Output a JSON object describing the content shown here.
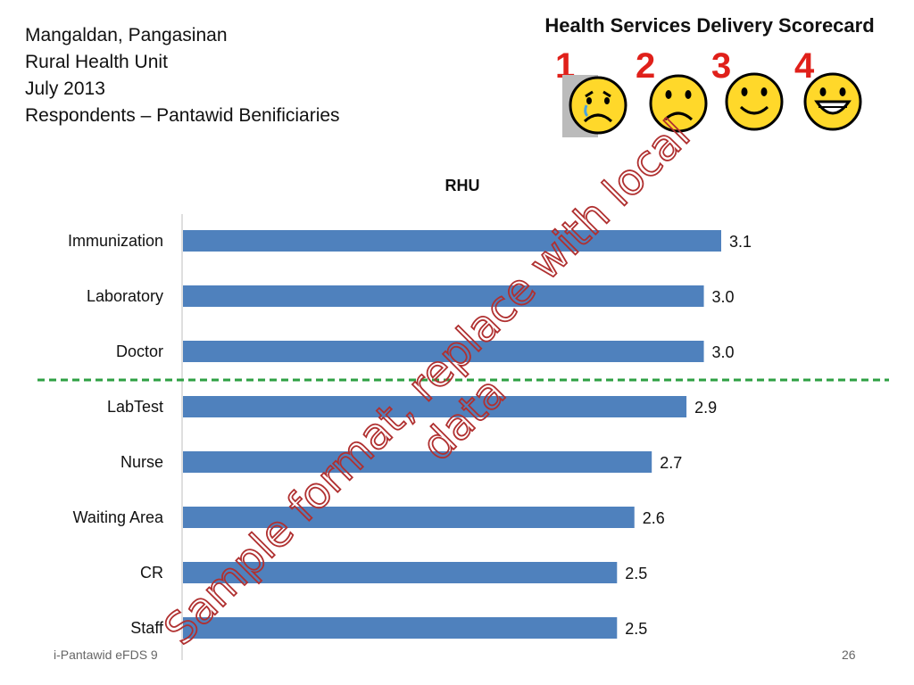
{
  "header": {
    "line1": "Mangaldan, Pangasinan",
    "line2": "Rural Health Unit",
    "line3": "July 2013",
    "line4": "Respondents – Pantawid Benificiaries"
  },
  "scorecard": {
    "title": "Health Services Delivery Scorecard",
    "levels": [
      {
        "number": "1",
        "icon": "crying-face-icon"
      },
      {
        "number": "2",
        "icon": "sad-face-icon"
      },
      {
        "number": "3",
        "icon": "smiling-face-icon"
      },
      {
        "number": "4",
        "icon": "grinning-face-icon"
      }
    ]
  },
  "chart_data": {
    "type": "bar",
    "orientation": "horizontal",
    "title": "RHU",
    "categories": [
      "Immunization",
      "Laboratory",
      "Doctor",
      "LabTest",
      "Nurse",
      "Waiting Area",
      "CR",
      "Staff"
    ],
    "values": [
      3.1,
      3.0,
      3.0,
      2.9,
      2.7,
      2.6,
      2.5,
      2.5
    ],
    "value_labels": [
      "3.1",
      "3.0",
      "3.0",
      "2.9",
      "2.7",
      "2.6",
      "2.5",
      "2.5"
    ],
    "xlim": [
      0,
      3.1
    ],
    "threshold_after_category": "Doctor",
    "bar_color": "#4f81bd",
    "threshold_color": "#2ea043",
    "grid": false,
    "legend": "none"
  },
  "watermark": {
    "line1": "Sample format, replace with local",
    "line2": "data",
    "color": "#b03030"
  },
  "footer": {
    "left": "i-Pantawid eFDS 9",
    "page": "26"
  }
}
